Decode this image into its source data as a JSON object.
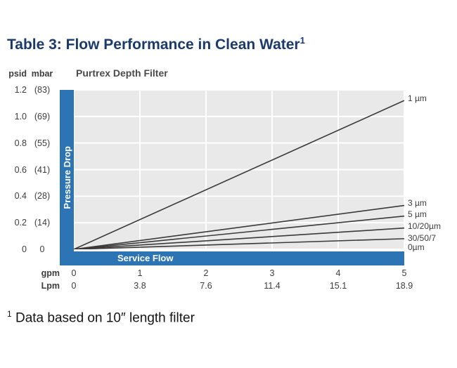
{
  "page": {
    "title": "Table 3: Flow Performance in Clean Water",
    "title_superscript": "1",
    "footnote_superscript": "1",
    "footnote": "Data based on 10″ length filter"
  },
  "colors": {
    "band_blue": "#2d74b5",
    "title_navy": "#1b3a6b",
    "plot_background": "#e9e9e9",
    "grid": "#ffffff",
    "series_line": "#3a3a3a"
  },
  "chart_data": {
    "type": "line",
    "title": "Purtrex Depth Filter",
    "xlabel": "Service Flow",
    "ylabel": "Pressure Drop",
    "x_unit_gpm": "gpm",
    "x_unit_lpm": "Lpm",
    "y_unit_psid": "psid",
    "y_unit_mbar": "mbar",
    "x_ticks_gpm": [
      "0",
      "1",
      "2",
      "3",
      "4",
      "5"
    ],
    "x_ticks_lpm": [
      "0",
      "3.8",
      "7.6",
      "11.4",
      "15.1",
      "18.9"
    ],
    "y_ticks_psid": [
      "1.2",
      "1.0",
      "0.8",
      "0.6",
      "0.4",
      "0.2",
      "0"
    ],
    "y_ticks_mbar": [
      "(83)",
      "(69)",
      "(55)",
      "(41)",
      "(28)",
      "(14)",
      "0"
    ],
    "xlim": [
      0,
      5
    ],
    "ylim": [
      0,
      1.2
    ],
    "grid": true,
    "legend_position": "right",
    "series": [
      {
        "name": "1 µm",
        "x": [
          0,
          5
        ],
        "y": [
          0,
          1.12
        ]
      },
      {
        "name": "3 µm",
        "x": [
          0,
          5
        ],
        "y": [
          0,
          0.33
        ]
      },
      {
        "name": "5 µm",
        "x": [
          0,
          5
        ],
        "y": [
          0,
          0.25
        ]
      },
      {
        "name": "10/20µm",
        "x": [
          0,
          5
        ],
        "y": [
          0,
          0.16
        ]
      },
      {
        "name": "30/50/70µm",
        "x": [
          0,
          5
        ],
        "y": [
          0,
          0.08
        ]
      }
    ]
  }
}
